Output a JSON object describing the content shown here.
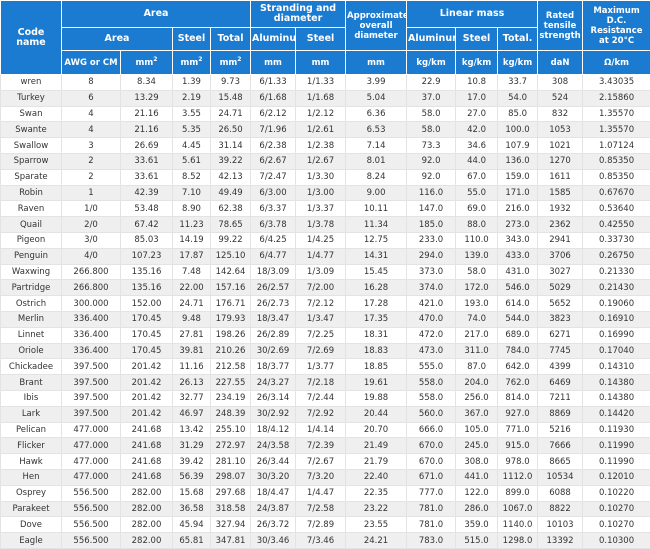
{
  "headers": {
    "code_name": "Code name",
    "area_group": "Area",
    "area_sub": "Area",
    "steel": "Steel",
    "total": "Total",
    "stranding_l1": "Stranding and",
    "stranding_l2": "diameter",
    "aluminum": "Aluminum",
    "approx_l1": "Approximate",
    "approx_l2": "overall",
    "approx_l3": "diameter",
    "linear_mass": "Linear mass",
    "total_dot": "Total.",
    "rated_l1": "Rated",
    "rated_l2": "tensile",
    "rated_l3": "strength",
    "max_l1": "Maximum",
    "max_l2": "D.C.",
    "max_l3": "Resistance",
    "max_l4": "at 20°C",
    "max_l5": "Ω/km"
  },
  "units": {
    "awg": "AWG or CM",
    "mm2_base": "mm",
    "mm2_sup": "2",
    "mm": "mm",
    "kgkm": "kg/km",
    "dan": "daN"
  },
  "rows": [
    [
      "wren",
      "8",
      "8.34",
      "1.39",
      "9.73",
      "6/1.33",
      "1/1.33",
      "3.99",
      "22.9",
      "10.8",
      "33.7",
      "308",
      "3.43035"
    ],
    [
      "Turkey",
      "6",
      "13.29",
      "2.19",
      "15.48",
      "6/1.68",
      "1/1.68",
      "5.04",
      "37.0",
      "17.0",
      "54.0",
      "524",
      "2.15860"
    ],
    [
      "Swan",
      "4",
      "21.16",
      "3.55",
      "24.71",
      "6/2.12",
      "1/2.12",
      "6.36",
      "58.0",
      "27.0",
      "85.0",
      "832",
      "1.35570"
    ],
    [
      "Swante",
      "4",
      "21.16",
      "5.35",
      "26.50",
      "7/1.96",
      "1/2.61",
      "6.53",
      "58.0",
      "42.0",
      "100.0",
      "1053",
      "1.35570"
    ],
    [
      "Swallow",
      "3",
      "26.69",
      "4.45",
      "31.14",
      "6/2.38",
      "1/2.38",
      "7.14",
      "73.3",
      "34.6",
      "107.9",
      "1021",
      "1.07124"
    ],
    [
      "Sparrow",
      "2",
      "33.61",
      "5.61",
      "39.22",
      "6/2.67",
      "1/2.67",
      "8.01",
      "92.0",
      "44.0",
      "136.0",
      "1270",
      "0.85350"
    ],
    [
      "Sparate",
      "2",
      "33.61",
      "8.52",
      "42.13",
      "7/2.47",
      "1/3.30",
      "8.24",
      "92.0",
      "67.0",
      "159.0",
      "1611",
      "0.85350"
    ],
    [
      "Robin",
      "1",
      "42.39",
      "7.10",
      "49.49",
      "6/3.00",
      "1/3.00",
      "9.00",
      "116.0",
      "55.0",
      "171.0",
      "1585",
      "0.67670"
    ],
    [
      "Raven",
      "1/0",
      "53.48",
      "8.90",
      "62.38",
      "6/3.37",
      "1/3.37",
      "10.11",
      "147.0",
      "69.0",
      "216.0",
      "1932",
      "0.53640"
    ],
    [
      "Quail",
      "2/0",
      "67.42",
      "11.23",
      "78.65",
      "6/3.78",
      "1/3.78",
      "11.34",
      "185.0",
      "88.0",
      "273.0",
      "2362",
      "0.42550"
    ],
    [
      "Pigeon",
      "3/0",
      "85.03",
      "14.19",
      "99.22",
      "6/4.25",
      "1/4.25",
      "12.75",
      "233.0",
      "110.0",
      "343.0",
      "2941",
      "0.33730"
    ],
    [
      "Penguin",
      "4/0",
      "107.23",
      "17.87",
      "125.10",
      "6/4.77",
      "1/4.77",
      "14.31",
      "294.0",
      "139.0",
      "433.0",
      "3706",
      "0.26750"
    ],
    [
      "Waxwing",
      "266.800",
      "135.16",
      "7.48",
      "142.64",
      "18/3.09",
      "1/3.09",
      "15.45",
      "373.0",
      "58.0",
      "431.0",
      "3027",
      "0.21330"
    ],
    [
      "Partridge",
      "266.800",
      "135.16",
      "22.00",
      "157.16",
      "26/2.57",
      "7/2.00",
      "16.28",
      "374.0",
      "172.0",
      "546.0",
      "5029",
      "0.21430"
    ],
    [
      "Ostrich",
      "300.000",
      "152.00",
      "24.71",
      "176.71",
      "26/2.73",
      "7/2.12",
      "17.28",
      "421.0",
      "193.0",
      "614.0",
      "5652",
      "0.19060"
    ],
    [
      "Merlin",
      "336.400",
      "170.45",
      "9.48",
      "179.93",
      "18/3.47",
      "1/3.47",
      "17.35",
      "470.0",
      "74.0",
      "544.0",
      "3823",
      "0.16910"
    ],
    [
      "Linnet",
      "336.400",
      "170.45",
      "27.81",
      "198.26",
      "26/2.89",
      "7/2.25",
      "18.31",
      "472.0",
      "217.0",
      "689.0",
      "6271",
      "0.16990"
    ],
    [
      "Oriole",
      "336.400",
      "170.45",
      "39.81",
      "210.26",
      "30/2.69",
      "7/2.69",
      "18.83",
      "473.0",
      "311.0",
      "784.0",
      "7745",
      "0.17040"
    ],
    [
      "Chickadee",
      "397.500",
      "201.42",
      "11.16",
      "212.58",
      "18/3.77",
      "1/3.77",
      "18.85",
      "555.0",
      "87.0",
      "642.0",
      "4399",
      "0.14310"
    ],
    [
      "Brant",
      "397.500",
      "201.42",
      "26.13",
      "227.55",
      "24/3.27",
      "7/2.18",
      "19.61",
      "558.0",
      "204.0",
      "762.0",
      "6469",
      "0.14380"
    ],
    [
      "Ibis",
      "397.500",
      "201.42",
      "32.77",
      "234.19",
      "26/3.14",
      "7/2.44",
      "19.88",
      "558.0",
      "256.0",
      "814.0",
      "7211",
      "0.14380"
    ],
    [
      "Lark",
      "397.500",
      "201.42",
      "46.97",
      "248.39",
      "30/2.92",
      "7/2.92",
      "20.44",
      "560.0",
      "367.0",
      "927.0",
      "8869",
      "0.14420"
    ],
    [
      "Pelican",
      "477.000",
      "241.68",
      "13.42",
      "255.10",
      "18/4.12",
      "1/4.14",
      "20.70",
      "666.0",
      "105.0",
      "771.0",
      "5216",
      "0.11930"
    ],
    [
      "Flicker",
      "477.000",
      "241.68",
      "31.29",
      "272.97",
      "24/3.58",
      "7/2.39",
      "21.49",
      "670.0",
      "245.0",
      "915.0",
      "7666",
      "0.11990"
    ],
    [
      "Hawk",
      "477.000",
      "241.68",
      "39.42",
      "281.10",
      "26/3.44",
      "7/2.67",
      "21.79",
      "670.0",
      "308.0",
      "978.0",
      "8665",
      "0.11990"
    ],
    [
      "Hen",
      "477.000",
      "241.68",
      "56.39",
      "298.07",
      "30/3.20",
      "7/3.20",
      "22.40",
      "671.0",
      "441.0",
      "1112.0",
      "10534",
      "0.12010"
    ],
    [
      "Osprey",
      "556.500",
      "282.00",
      "15.68",
      "297.68",
      "18/4.47",
      "1/4.47",
      "22.35",
      "777.0",
      "122.0",
      "899.0",
      "6088",
      "0.10220"
    ],
    [
      "Parakeet",
      "556.500",
      "282.00",
      "36.58",
      "318.58",
      "24/3.87",
      "7/2.58",
      "23.22",
      "781.0",
      "286.0",
      "1067.0",
      "8822",
      "0.10270"
    ],
    [
      "Dove",
      "556.500",
      "282.00",
      "45.94",
      "327.94",
      "26/3.72",
      "7/2.89",
      "23.55",
      "781.0",
      "359.0",
      "1140.0",
      "10103",
      "0.10270"
    ],
    [
      "Eagle",
      "556.500",
      "282.00",
      "65.81",
      "347.81",
      "30/3.46",
      "7/3.46",
      "24.21",
      "783.0",
      "515.0",
      "1298.0",
      "13392",
      "0.10300"
    ]
  ]
}
